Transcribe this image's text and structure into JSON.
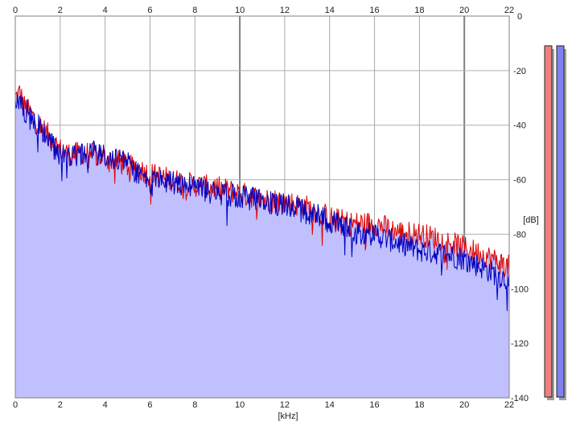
{
  "chart_data": {
    "type": "line",
    "xlabel": "[kHz]",
    "ylabel": "[dB]",
    "xlim": [
      0,
      22
    ],
    "ylim": [
      -140,
      0
    ],
    "x_ticks": [
      0,
      2,
      4,
      6,
      8,
      10,
      12,
      14,
      16,
      18,
      20,
      22
    ],
    "y_ticks": [
      0,
      -20,
      -40,
      -60,
      -80,
      -100,
      -120,
      -140
    ],
    "grid": true,
    "series": [
      {
        "color": "#e00000",
        "x": [
          0,
          0.2,
          0.4,
          0.6,
          0.8,
          1,
          1.5,
          2,
          2.5,
          3,
          3.5,
          4,
          4.5,
          5,
          5.5,
          6,
          7,
          8,
          9,
          10,
          11,
          12,
          13,
          14,
          15,
          16,
          17,
          18,
          19,
          20,
          21,
          22
        ],
        "values": [
          -30,
          -28,
          -33,
          -35,
          -37,
          -39,
          -44,
          -49,
          -51,
          -50,
          -51,
          -52,
          -53,
          -55,
          -56,
          -58,
          -60,
          -62,
          -63,
          -65,
          -67,
          -68,
          -70,
          -74,
          -76,
          -76,
          -79,
          -80,
          -82,
          -85,
          -88,
          -92
        ]
      },
      {
        "color": "#0000c0",
        "x": [
          0,
          0.2,
          0.4,
          0.6,
          0.8,
          1,
          1.5,
          2,
          2.5,
          3,
          3.5,
          4,
          4.5,
          5,
          5.5,
          6,
          7,
          8,
          9,
          10,
          11,
          12,
          13,
          14,
          15,
          16,
          17,
          18,
          19,
          20,
          21,
          22
        ],
        "values": [
          -33,
          -32,
          -36,
          -34,
          -38,
          -40,
          -46,
          -51,
          -52,
          -51,
          -50,
          -51,
          -52,
          -54,
          -58,
          -61,
          -61,
          -63,
          -65,
          -66,
          -68,
          -69,
          -72,
          -75,
          -79,
          -80,
          -83,
          -86,
          -87,
          -89,
          -93,
          -97
        ]
      }
    ],
    "fill_color": "#c0c0ff"
  },
  "meters": [
    {
      "color": "#f08080"
    },
    {
      "color": "#8080f0"
    }
  ]
}
